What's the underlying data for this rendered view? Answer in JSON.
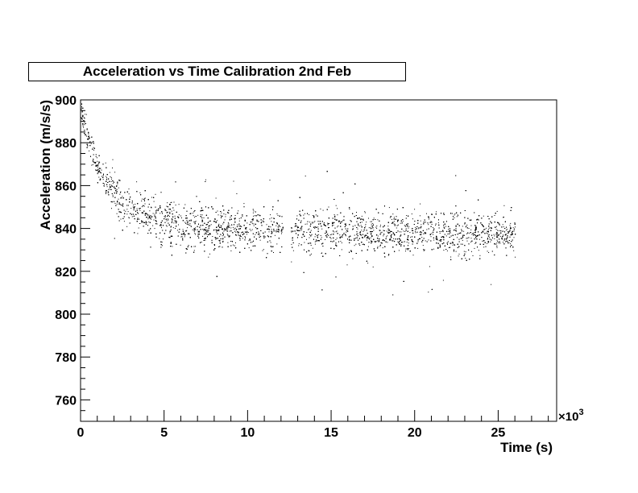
{
  "chart_data": {
    "type": "scatter",
    "title": "Acceleration vs Time Calibration 2nd Feb",
    "xlabel": "Time (s)",
    "ylabel": "Acceleration (m/s/s)",
    "x_exponent_label": "×10",
    "x_exponent_power": "3",
    "x_multiplier": 1000,
    "xlim": [
      0,
      28.5
    ],
    "ylim": [
      750,
      900
    ],
    "x_ticks": [
      0,
      5,
      10,
      15,
      20,
      25
    ],
    "x_tick_labels": [
      "0",
      "5",
      "10",
      "15",
      "20",
      "25"
    ],
    "y_ticks": [
      760,
      780,
      800,
      820,
      840,
      860,
      880,
      900
    ],
    "y_tick_labels": [
      "760",
      "780",
      "800",
      "820",
      "840",
      "860",
      "880",
      "900"
    ],
    "grid": false,
    "legend": "none",
    "marker_color": "#000000",
    "series": [
      {
        "x_range": [
          0,
          26
        ],
        "data_gap": [
          12.1,
          12.6
        ],
        "points": [
          [
            0.0,
            897
          ],
          [
            0.1,
            893
          ],
          [
            0.2,
            889
          ],
          [
            0.3,
            886
          ],
          [
            0.5,
            880
          ],
          [
            0.8,
            874
          ],
          [
            1.0,
            869
          ],
          [
            1.5,
            862
          ],
          [
            2.0,
            857
          ],
          [
            2.5,
            853
          ],
          [
            3.0,
            850
          ],
          [
            3.5,
            848
          ],
          [
            4.0,
            846
          ],
          [
            5.0,
            843
          ],
          [
            6.0,
            842
          ],
          [
            7.0,
            841
          ],
          [
            8.0,
            840
          ],
          [
            9.0,
            840
          ],
          [
            10.0,
            840
          ],
          [
            11.0,
            839
          ],
          [
            12.0,
            839
          ],
          [
            12.7,
            839
          ],
          [
            14.0,
            839
          ],
          [
            15.0,
            839
          ],
          [
            16.0,
            839
          ],
          [
            17.0,
            838
          ],
          [
            18.0,
            838
          ],
          [
            19.0,
            838
          ],
          [
            20.0,
            838
          ],
          [
            21.0,
            838
          ],
          [
            22.0,
            838
          ],
          [
            23.0,
            838
          ],
          [
            24.0,
            838
          ],
          [
            25.0,
            838
          ],
          [
            26.0,
            838
          ]
        ]
      }
    ]
  }
}
